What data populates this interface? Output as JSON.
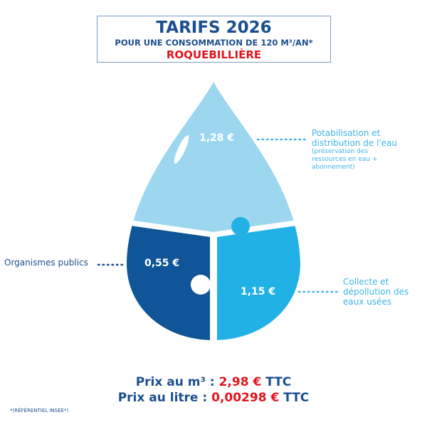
{
  "header": {
    "title": "TARIFS 2026",
    "subtitle": "POUR UNE CONSOMMATION DE 120 M³/AN*",
    "town": "ROQUEBILLIÈRE"
  },
  "segments": [
    {
      "value": "1,28 €",
      "label": "Potabilisation et distribution de l'eau",
      "detail": "(préservation des ressources en eau + abonnement)",
      "color": "#9dd7ef"
    },
    {
      "value": "0,55 €",
      "label": "Organismes publics",
      "color": "#0f5597"
    },
    {
      "value": "1,15 €",
      "label": "Collecte et dépollution des eaux usées",
      "color": "#22b1e7"
    }
  ],
  "prices": {
    "m3_label": "Prix au m³ :",
    "m3_value": "2,98 €",
    "m3_suffix": "TTC",
    "litre_label": "Prix au litre :",
    "litre_value": "0,00298 €",
    "litre_suffix": "TTC"
  },
  "footnote": "*(RÉFÉRENTIEL INSEE*)"
}
